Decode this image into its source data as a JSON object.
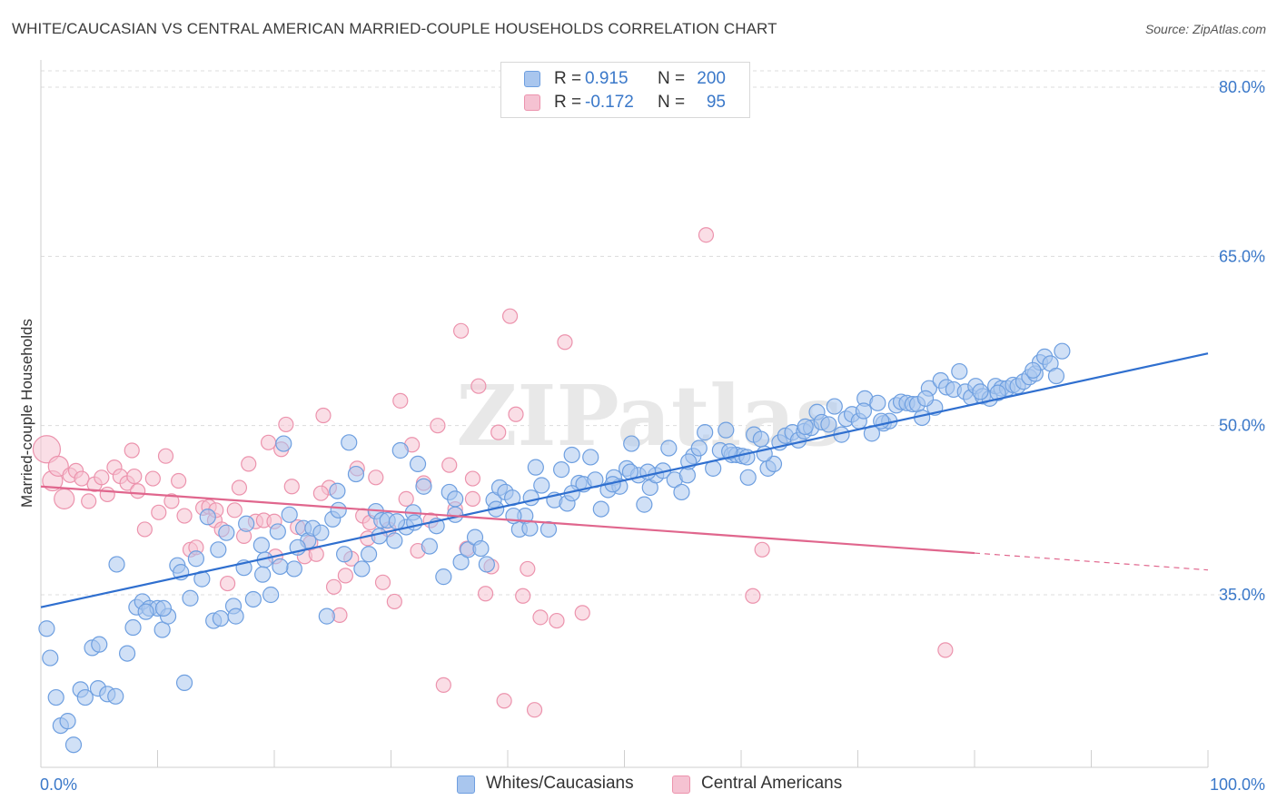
{
  "title": "WHITE/CAUCASIAN VS CENTRAL AMERICAN MARRIED-COUPLE HOUSEHOLDS CORRELATION CHART",
  "source": "Source: ZipAtlas.com",
  "watermark": "ZIPatlas",
  "colors": {
    "blue": "#6e9fe0",
    "blue_fill": "#a9c6ee",
    "blue_line": "#2f6fcf",
    "pink": "#ec93ad",
    "pink_fill": "#f5c2d2",
    "pink_line": "#e0668d",
    "value_text": "#3a78c9"
  },
  "legend_top": {
    "rows": [
      {
        "r_label": "R =",
        "r_value": "0.915",
        "n_label": "N =",
        "n_value": "200"
      },
      {
        "r_label": "R =",
        "r_value": "-0.172",
        "n_label": "N =",
        "n_value": "95"
      }
    ]
  },
  "legend_bottom": {
    "items": [
      {
        "label": "Whites/Caucasians"
      },
      {
        "label": "Central Americans"
      }
    ]
  },
  "chart_data": {
    "type": "scatter",
    "title": "WHITE/CAUCASIAN VS CENTRAL AMERICAN MARRIED-COUPLE HOUSEHOLDS CORRELATION CHART",
    "xlabel": "",
    "ylabel": "Married-couple Households",
    "xlim": [
      0,
      100
    ],
    "ylim": [
      20,
      82
    ],
    "x_tick_labels": [
      "0.0%",
      "100.0%"
    ],
    "y_ticks": [
      35,
      50,
      65,
      80
    ],
    "y_tick_labels": [
      "35.0%",
      "50.0%",
      "65.0%",
      "80.0%"
    ],
    "grid": "horizontal dashed",
    "legend_position": "top-center",
    "series": [
      {
        "name": "Whites/Caucasians",
        "r": 0.915,
        "n": 200,
        "trend": {
          "x": [
            0,
            100
          ],
          "y": [
            33.9,
            56.4
          ]
        },
        "points": [
          [
            0.5,
            32.0
          ],
          [
            0.8,
            29.4
          ],
          [
            1.3,
            25.9
          ],
          [
            1.7,
            23.4
          ],
          [
            2.3,
            23.8
          ],
          [
            2.8,
            21.7
          ],
          [
            3.4,
            26.6
          ],
          [
            3.8,
            25.9
          ],
          [
            4.4,
            30.3
          ],
          [
            4.9,
            26.7
          ],
          [
            5.0,
            30.6
          ],
          [
            5.7,
            26.2
          ],
          [
            6.4,
            26.0
          ],
          [
            6.5,
            37.7
          ],
          [
            7.4,
            29.8
          ],
          [
            7.9,
            32.1
          ],
          [
            8.2,
            33.9
          ],
          [
            8.7,
            34.4
          ],
          [
            9.3,
            33.8
          ],
          [
            10.0,
            33.8
          ],
          [
            10.4,
            31.9
          ],
          [
            10.9,
            33.1
          ],
          [
            11.7,
            37.6
          ],
          [
            12.3,
            27.2
          ],
          [
            12.8,
            34.7
          ],
          [
            13.3,
            38.2
          ],
          [
            13.8,
            36.4
          ],
          [
            14.3,
            41.9
          ],
          [
            14.8,
            32.7
          ],
          [
            15.4,
            32.9
          ],
          [
            15.9,
            40.5
          ],
          [
            16.5,
            34.0
          ],
          [
            16.7,
            33.1
          ],
          [
            17.4,
            37.4
          ],
          [
            17.6,
            41.3
          ],
          [
            18.2,
            34.6
          ],
          [
            18.9,
            39.4
          ],
          [
            19.2,
            38.1
          ],
          [
            19.7,
            35.0
          ],
          [
            20.3,
            40.6
          ],
          [
            20.8,
            48.4
          ],
          [
            21.3,
            42.1
          ],
          [
            21.7,
            37.3
          ],
          [
            22.5,
            40.9
          ],
          [
            22.9,
            39.8
          ],
          [
            23.3,
            40.9
          ],
          [
            24.0,
            40.5
          ],
          [
            24.5,
            33.1
          ],
          [
            25.0,
            41.7
          ],
          [
            25.4,
            44.2
          ],
          [
            26.0,
            38.6
          ],
          [
            26.4,
            48.5
          ],
          [
            27.0,
            45.7
          ],
          [
            27.5,
            37.3
          ],
          [
            28.1,
            38.6
          ],
          [
            28.7,
            42.4
          ],
          [
            29.2,
            41.6
          ],
          [
            29.7,
            41.6
          ],
          [
            30.3,
            39.8
          ],
          [
            30.8,
            47.8
          ],
          [
            31.3,
            41.0
          ],
          [
            31.9,
            42.3
          ],
          [
            32.3,
            46.6
          ],
          [
            32.8,
            44.6
          ],
          [
            33.3,
            39.3
          ],
          [
            33.9,
            41.1
          ],
          [
            34.5,
            36.6
          ],
          [
            35.0,
            44.1
          ],
          [
            35.5,
            42.1
          ],
          [
            36.0,
            37.9
          ],
          [
            36.6,
            39.0
          ],
          [
            37.2,
            40.1
          ],
          [
            37.7,
            39.1
          ],
          [
            38.2,
            37.7
          ],
          [
            38.8,
            43.4
          ],
          [
            39.3,
            44.5
          ],
          [
            39.8,
            44.1
          ],
          [
            40.4,
            43.6
          ],
          [
            41.0,
            40.8
          ],
          [
            41.5,
            42.0
          ],
          [
            41.9,
            40.9
          ],
          [
            42.4,
            46.3
          ],
          [
            42.9,
            44.7
          ],
          [
            43.5,
            40.8
          ],
          [
            44.0,
            43.4
          ],
          [
            44.6,
            46.1
          ],
          [
            45.1,
            43.1
          ],
          [
            45.5,
            47.4
          ],
          [
            46.1,
            44.9
          ],
          [
            46.5,
            44.8
          ],
          [
            47.1,
            47.2
          ],
          [
            47.5,
            45.2
          ],
          [
            48.0,
            42.6
          ],
          [
            48.6,
            44.3
          ],
          [
            49.1,
            45.4
          ],
          [
            49.6,
            44.6
          ],
          [
            50.2,
            46.2
          ],
          [
            50.6,
            48.4
          ],
          [
            51.2,
            45.6
          ],
          [
            51.7,
            43.0
          ],
          [
            52.2,
            44.5
          ],
          [
            52.7,
            45.6
          ],
          [
            53.3,
            46.0
          ],
          [
            53.8,
            48.0
          ],
          [
            54.3,
            45.2
          ],
          [
            54.9,
            44.1
          ],
          [
            55.4,
            45.6
          ],
          [
            55.9,
            47.3
          ],
          [
            56.4,
            48.0
          ],
          [
            56.9,
            49.4
          ],
          [
            57.6,
            46.2
          ],
          [
            58.2,
            47.8
          ],
          [
            58.7,
            49.6
          ],
          [
            59.2,
            47.4
          ],
          [
            59.6,
            47.4
          ],
          [
            60.1,
            47.3
          ],
          [
            60.6,
            45.4
          ],
          [
            61.1,
            49.2
          ],
          [
            61.7,
            48.8
          ],
          [
            62.3,
            46.2
          ],
          [
            62.8,
            46.6
          ],
          [
            63.3,
            48.5
          ],
          [
            63.8,
            49.1
          ],
          [
            64.4,
            49.4
          ],
          [
            64.9,
            48.7
          ],
          [
            65.4,
            49.5
          ],
          [
            66.0,
            49.8
          ],
          [
            66.5,
            51.2
          ],
          [
            66.9,
            50.3
          ],
          [
            67.5,
            50.1
          ],
          [
            68.0,
            51.7
          ],
          [
            68.6,
            49.2
          ],
          [
            69.0,
            50.6
          ],
          [
            69.5,
            51.0
          ],
          [
            70.1,
            50.4
          ],
          [
            70.6,
            52.4
          ],
          [
            71.2,
            49.3
          ],
          [
            71.7,
            52.0
          ],
          [
            72.2,
            50.2
          ],
          [
            72.7,
            50.4
          ],
          [
            73.3,
            51.8
          ],
          [
            73.7,
            52.1
          ],
          [
            74.2,
            52.0
          ],
          [
            74.7,
            51.9
          ],
          [
            75.1,
            51.9
          ],
          [
            75.5,
            50.7
          ],
          [
            76.1,
            53.3
          ],
          [
            76.6,
            51.6
          ],
          [
            77.1,
            54.0
          ],
          [
            77.6,
            53.4
          ],
          [
            78.2,
            53.2
          ],
          [
            78.7,
            54.8
          ],
          [
            79.2,
            53.0
          ],
          [
            79.7,
            52.5
          ],
          [
            80.1,
            53.5
          ],
          [
            80.7,
            52.6
          ],
          [
            81.3,
            52.4
          ],
          [
            81.8,
            53.5
          ],
          [
            82.3,
            53.3
          ],
          [
            82.8,
            53.3
          ],
          [
            83.3,
            53.6
          ],
          [
            83.7,
            53.5
          ],
          [
            84.2,
            53.9
          ],
          [
            84.7,
            54.3
          ],
          [
            85.2,
            54.6
          ],
          [
            85.6,
            55.6
          ],
          [
            86.0,
            56.1
          ],
          [
            86.5,
            55.5
          ],
          [
            87.0,
            54.4
          ],
          [
            87.5,
            56.6
          ],
          [
            10.5,
            33.8
          ],
          [
            20.5,
            37.5
          ],
          [
            30.5,
            41.5
          ],
          [
            40.5,
            42.0
          ],
          [
            50.5,
            45.9
          ],
          [
            60.5,
            47.2
          ],
          [
            70.5,
            51.3
          ],
          [
            80.5,
            53.0
          ],
          [
            15.2,
            39.0
          ],
          [
            25.5,
            42.5
          ],
          [
            35.5,
            43.5
          ],
          [
            45.5,
            44.0
          ],
          [
            55.5,
            46.8
          ],
          [
            65.5,
            49.9
          ],
          [
            75.8,
            52.4
          ],
          [
            85.0,
            54.9
          ],
          [
            12.0,
            37.0
          ],
          [
            22.0,
            39.2
          ],
          [
            32.0,
            41.4
          ],
          [
            42.0,
            43.6
          ],
          [
            52.0,
            45.9
          ],
          [
            62.0,
            47.5
          ],
          [
            72.0,
            50.4
          ],
          [
            82.0,
            52.9
          ],
          [
            9.0,
            33.5
          ],
          [
            19.0,
            36.8
          ],
          [
            29.0,
            40.2
          ],
          [
            39.0,
            42.6
          ],
          [
            49.0,
            44.8
          ],
          [
            59.0,
            47.7
          ]
        ]
      },
      {
        "name": "Central Americans",
        "r": -0.172,
        "n": 95,
        "trend": {
          "x": [
            0,
            80
          ],
          "y": [
            44.6,
            38.7
          ],
          "dashed_x": [
            80,
            100
          ],
          "dashed_y": [
            38.7,
            37.2
          ]
        },
        "points": [
          [
            0.5,
            47.9
          ],
          [
            1.0,
            45.1
          ],
          [
            1.5,
            46.4
          ],
          [
            2.0,
            43.5
          ],
          [
            2.5,
            45.6
          ],
          [
            3.0,
            46.0
          ],
          [
            3.5,
            45.3
          ],
          [
            4.1,
            43.3
          ],
          [
            4.6,
            44.8
          ],
          [
            5.2,
            45.4
          ],
          [
            5.7,
            43.9
          ],
          [
            6.3,
            46.3
          ],
          [
            6.8,
            45.5
          ],
          [
            7.4,
            44.9
          ],
          [
            7.8,
            47.8
          ],
          [
            8.3,
            44.2
          ],
          [
            8.9,
            40.8
          ],
          [
            9.6,
            45.3
          ],
          [
            10.1,
            42.3
          ],
          [
            10.7,
            47.3
          ],
          [
            11.2,
            43.3
          ],
          [
            11.8,
            45.1
          ],
          [
            12.3,
            42.0
          ],
          [
            12.8,
            39.0
          ],
          [
            13.3,
            39.2
          ],
          [
            13.9,
            42.7
          ],
          [
            14.4,
            42.8
          ],
          [
            14.9,
            41.6
          ],
          [
            15.5,
            40.8
          ],
          [
            16.0,
            36.0
          ],
          [
            16.6,
            42.5
          ],
          [
            17.0,
            44.5
          ],
          [
            17.4,
            40.2
          ],
          [
            17.8,
            46.6
          ],
          [
            18.4,
            41.5
          ],
          [
            19.1,
            41.6
          ],
          [
            19.5,
            48.5
          ],
          [
            20.1,
            38.4
          ],
          [
            20.6,
            47.9
          ],
          [
            21.0,
            50.1
          ],
          [
            21.5,
            44.6
          ],
          [
            22.0,
            41.0
          ],
          [
            22.6,
            38.4
          ],
          [
            23.1,
            39.6
          ],
          [
            23.6,
            38.6
          ],
          [
            24.2,
            50.9
          ],
          [
            24.7,
            44.5
          ],
          [
            25.1,
            35.7
          ],
          [
            25.6,
            33.2
          ],
          [
            26.1,
            36.7
          ],
          [
            26.6,
            38.2
          ],
          [
            27.1,
            46.2
          ],
          [
            27.6,
            42.0
          ],
          [
            28.2,
            41.4
          ],
          [
            28.7,
            45.4
          ],
          [
            29.3,
            36.1
          ],
          [
            29.8,
            40.8
          ],
          [
            30.3,
            34.4
          ],
          [
            30.8,
            52.2
          ],
          [
            31.3,
            43.5
          ],
          [
            31.8,
            48.3
          ],
          [
            32.3,
            38.9
          ],
          [
            32.8,
            44.9
          ],
          [
            33.4,
            41.6
          ],
          [
            34.0,
            50.0
          ],
          [
            34.5,
            27.0
          ],
          [
            35.0,
            46.5
          ],
          [
            35.5,
            42.6
          ],
          [
            36.0,
            58.4
          ],
          [
            36.5,
            39.1
          ],
          [
            37.0,
            43.5
          ],
          [
            37.5,
            53.5
          ],
          [
            38.1,
            35.1
          ],
          [
            38.6,
            37.5
          ],
          [
            39.2,
            49.4
          ],
          [
            39.7,
            25.6
          ],
          [
            40.2,
            59.7
          ],
          [
            40.7,
            51.0
          ],
          [
            41.3,
            34.9
          ],
          [
            41.7,
            37.3
          ],
          [
            42.3,
            24.8
          ],
          [
            42.8,
            33.0
          ],
          [
            44.2,
            32.7
          ],
          [
            44.9,
            57.4
          ],
          [
            46.4,
            33.4
          ],
          [
            57.0,
            66.9
          ],
          [
            61.0,
            34.9
          ],
          [
            61.8,
            39.0
          ],
          [
            77.5,
            30.1
          ],
          [
            37.0,
            45.3
          ],
          [
            28.0,
            40.0
          ],
          [
            20.0,
            41.5
          ],
          [
            8.0,
            45.5
          ],
          [
            15.0,
            42.5
          ],
          [
            24.0,
            44.0
          ]
        ]
      }
    ]
  }
}
